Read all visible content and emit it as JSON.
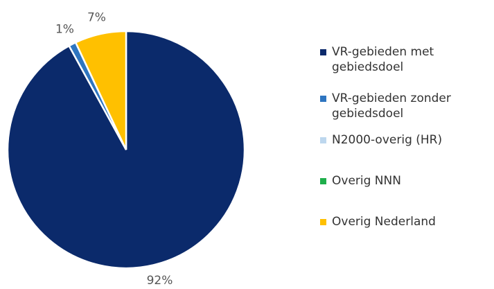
{
  "chart_data": {
    "type": "pie",
    "categories": [
      "VR-gebieden met gebiedsdoel",
      "VR-gebieden zonder gebiedsdoel",
      "N2000-overig (HR)",
      "Overig NNN",
      "Overig Nederland"
    ],
    "values": [
      92,
      1,
      0,
      0,
      7
    ],
    "value_labels": [
      "92%",
      "1%",
      null,
      null,
      "7%"
    ],
    "colors": [
      "#0b2a6b",
      "#2e75c0",
      "#bdd7ee",
      "#1fae4b",
      "#ffc000"
    ]
  }
}
